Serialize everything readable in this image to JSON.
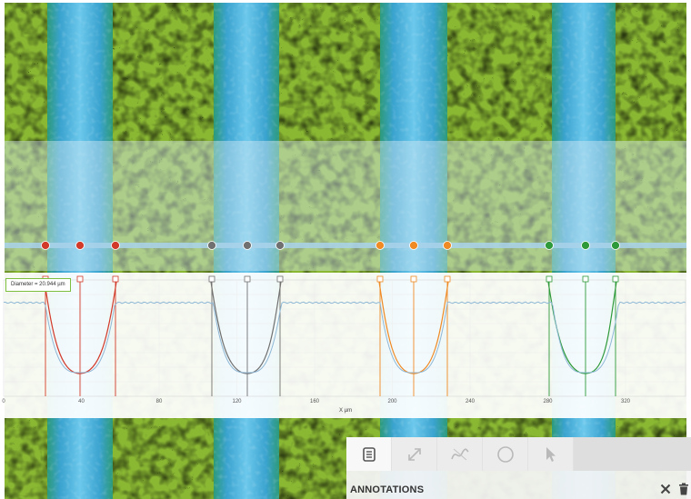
{
  "graph": {
    "diameter_label": "Diameter = 20.944 µm",
    "x_axis_label": "X µm",
    "x_ticks": [
      "0",
      "40",
      "80",
      "120",
      "160",
      "200",
      "240",
      "280",
      "320"
    ]
  },
  "markers": {
    "colors": [
      "#d23a2a",
      "#707070",
      "#ef8a24",
      "#2e9a3a"
    ]
  },
  "annotations": {
    "title": "ANNOTATIONS",
    "tools": [
      "list-icon",
      "resize-arrows-icon",
      "curve-tool-icon",
      "circle-tool-icon",
      "pointer-icon"
    ]
  }
}
